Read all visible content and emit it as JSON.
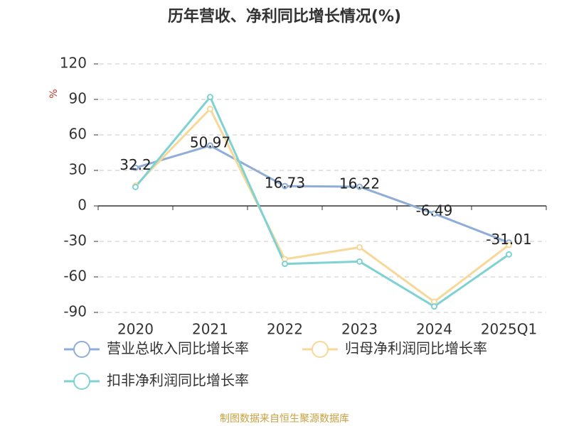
{
  "chart_data": {
    "type": "line",
    "title": "历年营收、净利同比增长情况(%)",
    "y_label": "%",
    "source": "制图数据来自恒生聚源数据库",
    "categories": [
      "2020",
      "2021",
      "2022",
      "2023",
      "2024",
      "2025Q1"
    ],
    "series": [
      {
        "name": "营业总收入同比增长率",
        "color": "#8eaed8",
        "values": [
          32.2,
          50.97,
          16.73,
          16.22,
          -6.49,
          -31.01
        ],
        "show_labels": true
      },
      {
        "name": "归母净利润同比增长率",
        "color": "#f8d898",
        "values": [
          17,
          82,
          -45,
          -35,
          -81,
          -33
        ]
      },
      {
        "name": "扣非净利润同比增长率",
        "color": "#7fd2d4",
        "values": [
          16,
          92,
          -49,
          -47,
          -85,
          -41
        ]
      }
    ],
    "ylim": [
      -90,
      120
    ],
    "yticks": [
      -90,
      -60,
      -30,
      0,
      30,
      60,
      90,
      120
    ],
    "grid": true
  }
}
